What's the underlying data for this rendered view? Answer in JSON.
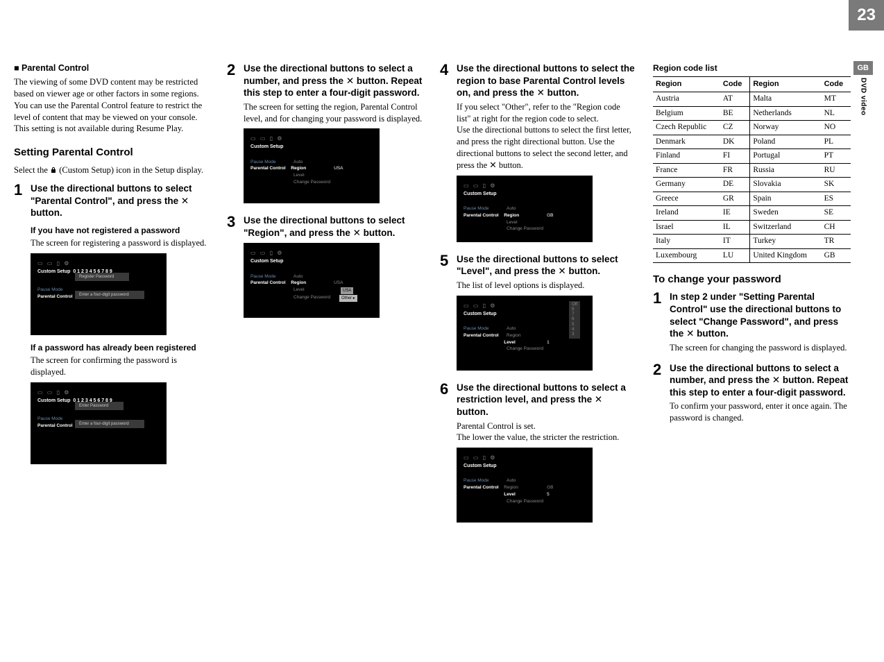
{
  "page_number": "23",
  "side_tab": {
    "lang": "GB",
    "section": "DVD video"
  },
  "parental_control": {
    "heading": "■ Parental Control",
    "body": "The viewing of some DVD content may be restricted based on viewer age or other factors in some regions. You can use the Parental Control feature to restrict the level of content that may be viewed on your console.\nThis setting is not available during Resume Play."
  },
  "setting_pc": {
    "heading": "Setting Parental Control",
    "intro_pre": "Select the ",
    "intro_post": " (Custom Setup) icon in the Setup display."
  },
  "step1": {
    "num": "1",
    "title_a": "Use the directional buttons to select \"Parental Control\", and press the ",
    "title_b": " button.",
    "sub1_h": "If you have not registered a password",
    "sub1_b": "The screen for registering a password is displayed.",
    "sub2_h": "If a password has already been registered",
    "sub2_b": "The screen for confirming the password is displayed."
  },
  "step2": {
    "num": "2",
    "title_a": "Use the directional buttons to select a number, and press the ",
    "title_b": " button. Repeat this step to enter a four-digit password.",
    "desc": "The screen for setting the region, Parental Control level, and for changing your password is displayed."
  },
  "step3": {
    "num": "3",
    "title_a": "Use the directional buttons to select \"Region\", and press the ",
    "title_b": " button."
  },
  "step4": {
    "num": "4",
    "title_a": "Use the directional buttons to select the region to base Parental Control levels on, and press the ",
    "title_b": " button.",
    "desc": "If you select \"Other\", refer to the \"Region code list\" at right for the region code to select.\nUse the directional buttons to select the first letter, and press the right directional button. Use the directional buttons to select the second letter, and press the ✕ button."
  },
  "step5": {
    "num": "5",
    "title_a": "Use the directional buttons to select \"Level\", and press the ",
    "title_b": " button.",
    "desc": "The list of level options is displayed."
  },
  "step6": {
    "num": "6",
    "title_a": "Use the directional buttons to select a restriction level, and press the ",
    "title_b": " button.",
    "desc": "Parental Control is set.\nThe lower the value, the stricter the restriction."
  },
  "region_table": {
    "title": "Region code list",
    "headers": [
      "Region",
      "Code",
      "Region",
      "Code"
    ],
    "rows": [
      [
        "Austria",
        "AT",
        "Malta",
        "MT"
      ],
      [
        "Belgium",
        "BE",
        "Netherlands",
        "NL"
      ],
      [
        "Czech Republic",
        "CZ",
        "Norway",
        "NO"
      ],
      [
        "Denmark",
        "DK",
        "Poland",
        "PL"
      ],
      [
        "Finland",
        "FI",
        "Portugal",
        "PT"
      ],
      [
        "France",
        "FR",
        "Russia",
        "RU"
      ],
      [
        "Germany",
        "DE",
        "Slovakia",
        "SK"
      ],
      [
        "Greece",
        "GR",
        "Spain",
        "ES"
      ],
      [
        "Ireland",
        "IE",
        "Sweden",
        "SE"
      ],
      [
        "Israel",
        "IL",
        "Switzerland",
        "CH"
      ],
      [
        "Italy",
        "IT",
        "Turkey",
        "TR"
      ],
      [
        "Luxembourg",
        "LU",
        "United Kingdom",
        "GB"
      ]
    ]
  },
  "change_pw": {
    "heading": "To change your password",
    "step1": {
      "num": "1",
      "title_a": "In step 2 under \"Setting Parental Control\" use the directional buttons to select \"Change Password\", and press the ",
      "title_b": " button.",
      "desc": "The screen for changing the password is displayed."
    },
    "step2": {
      "num": "2",
      "title_a": "Use the directional buttons to select a number, and press the ",
      "title_b": " button. Repeat this step to enter a four-digit password.",
      "desc": "To confirm your password, enter it once again. The password is changed."
    }
  },
  "ss_common": {
    "icons": "▭ ▭ ▯ ⚙",
    "custom_setup": "Custom Setup",
    "pause_mode": "Pause Mode",
    "parental_control": "Parental Control",
    "auto": "Auto",
    "region": "Region",
    "level": "Level",
    "change_pw": "Change Password",
    "usa": "USA",
    "gb": "GB",
    "other": "Other",
    "register_pw": "Register Password",
    "enter_pw": "Enter Password",
    "enter_4digit": "Enter a four-digit password",
    "digits": "0 1 2 3 4 5 6 7 8 9"
  }
}
